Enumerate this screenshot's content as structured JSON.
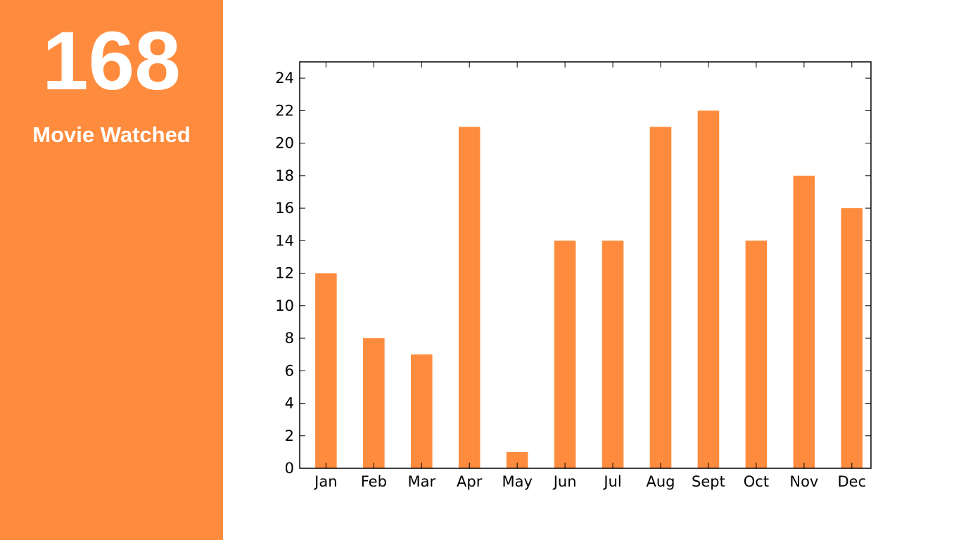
{
  "sidebar": {
    "value": "168",
    "label": "Movie Watched",
    "color": "#ff8c3e"
  },
  "chart_data": {
    "type": "bar",
    "categories": [
      "Jan",
      "Feb",
      "Mar",
      "Apr",
      "May",
      "Jun",
      "Jul",
      "Aug",
      "Sept",
      "Oct",
      "Nov",
      "Dec"
    ],
    "values": [
      12,
      8,
      7,
      21,
      1,
      14,
      14,
      21,
      22,
      14,
      18,
      16
    ],
    "ylim": [
      0,
      25
    ],
    "yticks": [
      0,
      2,
      4,
      6,
      8,
      10,
      12,
      14,
      16,
      18,
      20,
      22,
      24
    ],
    "bar_color": "#ff8c3e",
    "title": "",
    "xlabel": "",
    "ylabel": "",
    "grid": false
  }
}
